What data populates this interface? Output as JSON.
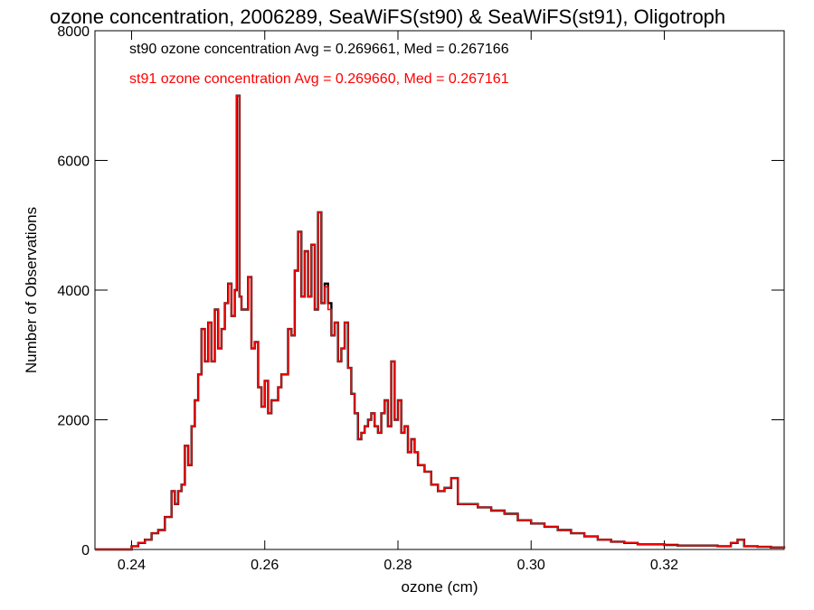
{
  "chart_data": {
    "type": "line",
    "title": "ozone concentration, 2006289, SeaWiFS(st90) & SeaWiFS(st91), Oligotroph",
    "xlabel": "ozone (cm)",
    "ylabel": "Number of Observations",
    "xlim": [
      0.2345,
      0.338
    ],
    "ylim": [
      0,
      8000
    ],
    "x_ticks": [
      "0.24",
      "0.26",
      "0.28",
      "0.30",
      "0.32"
    ],
    "y_ticks": [
      "0",
      "2000",
      "4000",
      "6000",
      "8000"
    ],
    "grid": false,
    "legend_position": "top-left",
    "legend": [
      {
        "text": "st90 ozone concentration Avg = 0.269661, Med = 0.267166",
        "color": "#000000"
      },
      {
        "text": "st91 ozone concentration Avg = 0.269660, Med = 0.267161",
        "color": "#ff0000"
      }
    ],
    "series": [
      {
        "name": "st90",
        "color": "#000000",
        "x": [
          0.2345,
          0.2395,
          0.24,
          0.241,
          0.242,
          0.243,
          0.244,
          0.245,
          0.246,
          0.2465,
          0.247,
          0.2475,
          0.248,
          0.2485,
          0.249,
          0.2495,
          0.25,
          0.2505,
          0.251,
          0.2515,
          0.252,
          0.2525,
          0.253,
          0.2535,
          0.254,
          0.2545,
          0.255,
          0.2555,
          0.2558,
          0.2562,
          0.2565,
          0.257,
          0.2575,
          0.258,
          0.2585,
          0.259,
          0.2595,
          0.26,
          0.2605,
          0.261,
          0.2615,
          0.262,
          0.2625,
          0.263,
          0.2635,
          0.264,
          0.2645,
          0.265,
          0.2655,
          0.266,
          0.2665,
          0.267,
          0.2675,
          0.268,
          0.2685,
          0.269,
          0.2695,
          0.27,
          0.2705,
          0.271,
          0.2715,
          0.272,
          0.2725,
          0.273,
          0.2735,
          0.274,
          0.2745,
          0.275,
          0.2755,
          0.276,
          0.2765,
          0.277,
          0.2775,
          0.278,
          0.2785,
          0.279,
          0.2795,
          0.28,
          0.2805,
          0.281,
          0.2815,
          0.282,
          0.2825,
          0.283,
          0.284,
          0.285,
          0.286,
          0.287,
          0.288,
          0.289,
          0.29,
          0.292,
          0.294,
          0.296,
          0.298,
          0.3,
          0.302,
          0.304,
          0.306,
          0.308,
          0.31,
          0.312,
          0.314,
          0.316,
          0.318,
          0.32,
          0.322,
          0.324,
          0.326,
          0.328,
          0.33,
          0.331,
          0.332,
          0.334,
          0.336,
          0.338
        ],
        "y": [
          0,
          0,
          50,
          100,
          150,
          250,
          300,
          500,
          900,
          700,
          900,
          1000,
          1600,
          1300,
          1900,
          2300,
          2700,
          3400,
          2900,
          3500,
          2900,
          3700,
          3100,
          3400,
          3800,
          4100,
          3600,
          4000,
          7000,
          3900,
          3700,
          3700,
          4200,
          3100,
          3200,
          2500,
          2200,
          2600,
          2100,
          2300,
          2300,
          2500,
          2700,
          2700,
          3400,
          3300,
          4300,
          4900,
          3900,
          4600,
          3900,
          4700,
          3700,
          5200,
          3800,
          4100,
          3800,
          3300,
          3500,
          2900,
          3100,
          3500,
          2800,
          2400,
          2100,
          1700,
          1800,
          1900,
          2000,
          2100,
          1900,
          1800,
          2100,
          2300,
          1900,
          2900,
          2000,
          2300,
          1800,
          1900,
          1500,
          1700,
          1500,
          1300,
          1200,
          1000,
          900,
          950,
          1100,
          700,
          700,
          650,
          600,
          550,
          450,
          400,
          350,
          300,
          250,
          200,
          150,
          120,
          100,
          80,
          80,
          70,
          60,
          60,
          60,
          50,
          100,
          150,
          50,
          40,
          30,
          20
        ]
      },
      {
        "name": "st91",
        "color": "#ff0000",
        "x": [
          0.2345,
          0.2395,
          0.24,
          0.241,
          0.242,
          0.243,
          0.244,
          0.245,
          0.246,
          0.2465,
          0.247,
          0.2475,
          0.248,
          0.2485,
          0.249,
          0.2495,
          0.25,
          0.2505,
          0.251,
          0.2515,
          0.252,
          0.2525,
          0.253,
          0.2535,
          0.254,
          0.2545,
          0.255,
          0.2555,
          0.2558,
          0.2562,
          0.2565,
          0.257,
          0.2575,
          0.258,
          0.2585,
          0.259,
          0.2595,
          0.26,
          0.2605,
          0.261,
          0.2615,
          0.262,
          0.2625,
          0.263,
          0.2635,
          0.264,
          0.2645,
          0.265,
          0.2655,
          0.266,
          0.2665,
          0.267,
          0.2675,
          0.268,
          0.2685,
          0.269,
          0.2695,
          0.27,
          0.2705,
          0.271,
          0.2715,
          0.272,
          0.2725,
          0.273,
          0.2735,
          0.274,
          0.2745,
          0.275,
          0.2755,
          0.276,
          0.2765,
          0.277,
          0.2775,
          0.278,
          0.2785,
          0.279,
          0.2795,
          0.28,
          0.2805,
          0.281,
          0.2815,
          0.282,
          0.2825,
          0.283,
          0.284,
          0.285,
          0.286,
          0.287,
          0.288,
          0.289,
          0.29,
          0.292,
          0.294,
          0.296,
          0.298,
          0.3,
          0.302,
          0.304,
          0.306,
          0.308,
          0.31,
          0.312,
          0.314,
          0.316,
          0.318,
          0.32,
          0.322,
          0.324,
          0.326,
          0.328,
          0.33,
          0.331,
          0.332,
          0.334,
          0.336,
          0.338
        ],
        "y": [
          0,
          0,
          50,
          100,
          150,
          250,
          300,
          500,
          900,
          700,
          900,
          1000,
          1600,
          1300,
          1900,
          2300,
          2700,
          3400,
          2900,
          3500,
          2900,
          3700,
          3100,
          3400,
          3800,
          4100,
          3600,
          4000,
          7000,
          3900,
          3700,
          3700,
          4200,
          3100,
          3200,
          2500,
          2200,
          2600,
          2100,
          2300,
          2300,
          2500,
          2700,
          2700,
          3400,
          3300,
          4300,
          4900,
          3900,
          4600,
          3900,
          4700,
          3700,
          5200,
          3800,
          4050,
          3700,
          3300,
          3500,
          2900,
          3100,
          3500,
          2800,
          2400,
          2100,
          1700,
          1800,
          1900,
          2000,
          2100,
          1900,
          1800,
          2100,
          2300,
          1900,
          2900,
          2000,
          2300,
          1800,
          1900,
          1500,
          1700,
          1500,
          1300,
          1200,
          1000,
          900,
          950,
          1100,
          700,
          700,
          650,
          600,
          550,
          450,
          400,
          350,
          300,
          250,
          200,
          150,
          120,
          100,
          80,
          80,
          70,
          60,
          60,
          60,
          50,
          100,
          150,
          50,
          40,
          30,
          20
        ]
      }
    ]
  }
}
